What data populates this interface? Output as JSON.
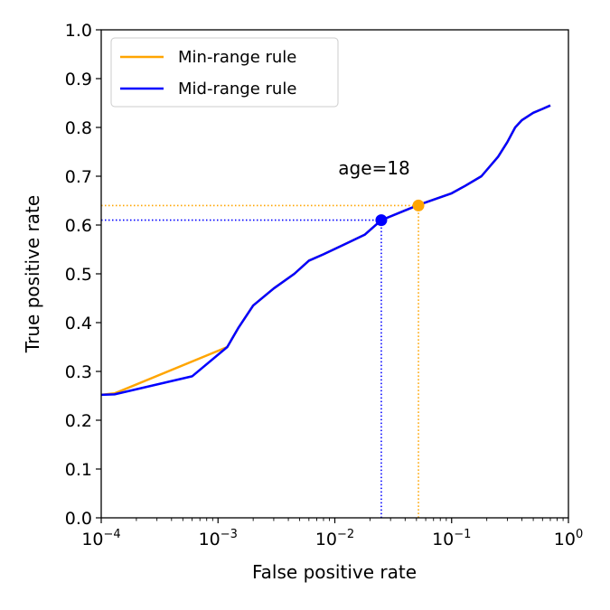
{
  "chart_data": {
    "type": "line",
    "title": "",
    "xlabel": "False positive rate",
    "ylabel": "True positive rate",
    "xscale": "log",
    "xlim": [
      0.0001,
      1
    ],
    "ylim": [
      0.0,
      1.0
    ],
    "x_ticks": [
      {
        "value": 0.0001,
        "base": "10",
        "exp": "−4"
      },
      {
        "value": 0.001,
        "base": "10",
        "exp": "−3"
      },
      {
        "value": 0.01,
        "base": "10",
        "exp": "−2"
      },
      {
        "value": 0.1,
        "base": "10",
        "exp": "−1"
      },
      {
        "value": 1,
        "base": "10",
        "exp": "0"
      }
    ],
    "y_ticks": [
      "0.0",
      "0.1",
      "0.2",
      "0.3",
      "0.4",
      "0.5",
      "0.6",
      "0.7",
      "0.8",
      "0.9",
      "1.0"
    ],
    "grid": false,
    "legend": {
      "position": "top-left"
    },
    "series": [
      {
        "name": "Min-range rule",
        "color": "#ffa500",
        "points": [
          [
            0.0001,
            0.252
          ],
          [
            0.00013,
            0.255
          ],
          [
            0.0012,
            0.35
          ],
          [
            0.0015,
            0.39
          ],
          [
            0.002,
            0.435
          ],
          [
            0.003,
            0.47
          ],
          [
            0.0045,
            0.5
          ],
          [
            0.006,
            0.527
          ],
          [
            0.008,
            0.54
          ],
          [
            0.012,
            0.56
          ],
          [
            0.018,
            0.58
          ],
          [
            0.025,
            0.61
          ],
          [
            0.04,
            0.63
          ],
          [
            0.052,
            0.641
          ],
          [
            0.07,
            0.652
          ],
          [
            0.1,
            0.665
          ],
          [
            0.13,
            0.68
          ],
          [
            0.18,
            0.7
          ],
          [
            0.25,
            0.74
          ],
          [
            0.3,
            0.77
          ],
          [
            0.35,
            0.8
          ],
          [
            0.4,
            0.815
          ],
          [
            0.5,
            0.83
          ],
          [
            0.6,
            0.838
          ],
          [
            0.7,
            0.845
          ]
        ]
      },
      {
        "name": "Mid-range rule",
        "color": "#0000ff",
        "points": [
          [
            0.0001,
            0.252
          ],
          [
            0.00013,
            0.253
          ],
          [
            0.0006,
            0.29
          ],
          [
            0.0012,
            0.35
          ],
          [
            0.0015,
            0.39
          ],
          [
            0.002,
            0.435
          ],
          [
            0.003,
            0.47
          ],
          [
            0.0045,
            0.5
          ],
          [
            0.006,
            0.527
          ],
          [
            0.008,
            0.54
          ],
          [
            0.012,
            0.56
          ],
          [
            0.018,
            0.58
          ],
          [
            0.025,
            0.61
          ],
          [
            0.04,
            0.63
          ],
          [
            0.052,
            0.641
          ],
          [
            0.07,
            0.652
          ],
          [
            0.1,
            0.665
          ],
          [
            0.13,
            0.68
          ],
          [
            0.18,
            0.7
          ],
          [
            0.25,
            0.74
          ],
          [
            0.3,
            0.77
          ],
          [
            0.35,
            0.8
          ],
          [
            0.4,
            0.815
          ],
          [
            0.5,
            0.83
          ],
          [
            0.6,
            0.838
          ],
          [
            0.7,
            0.845
          ]
        ]
      }
    ],
    "markers": [
      {
        "series": "Min-range rule",
        "x": 0.052,
        "y": 0.64,
        "color": "#ffa500"
      },
      {
        "series": "Mid-range rule",
        "x": 0.025,
        "y": 0.61,
        "color": "#0000ff"
      }
    ],
    "annotation": {
      "text": "age=18"
    }
  }
}
